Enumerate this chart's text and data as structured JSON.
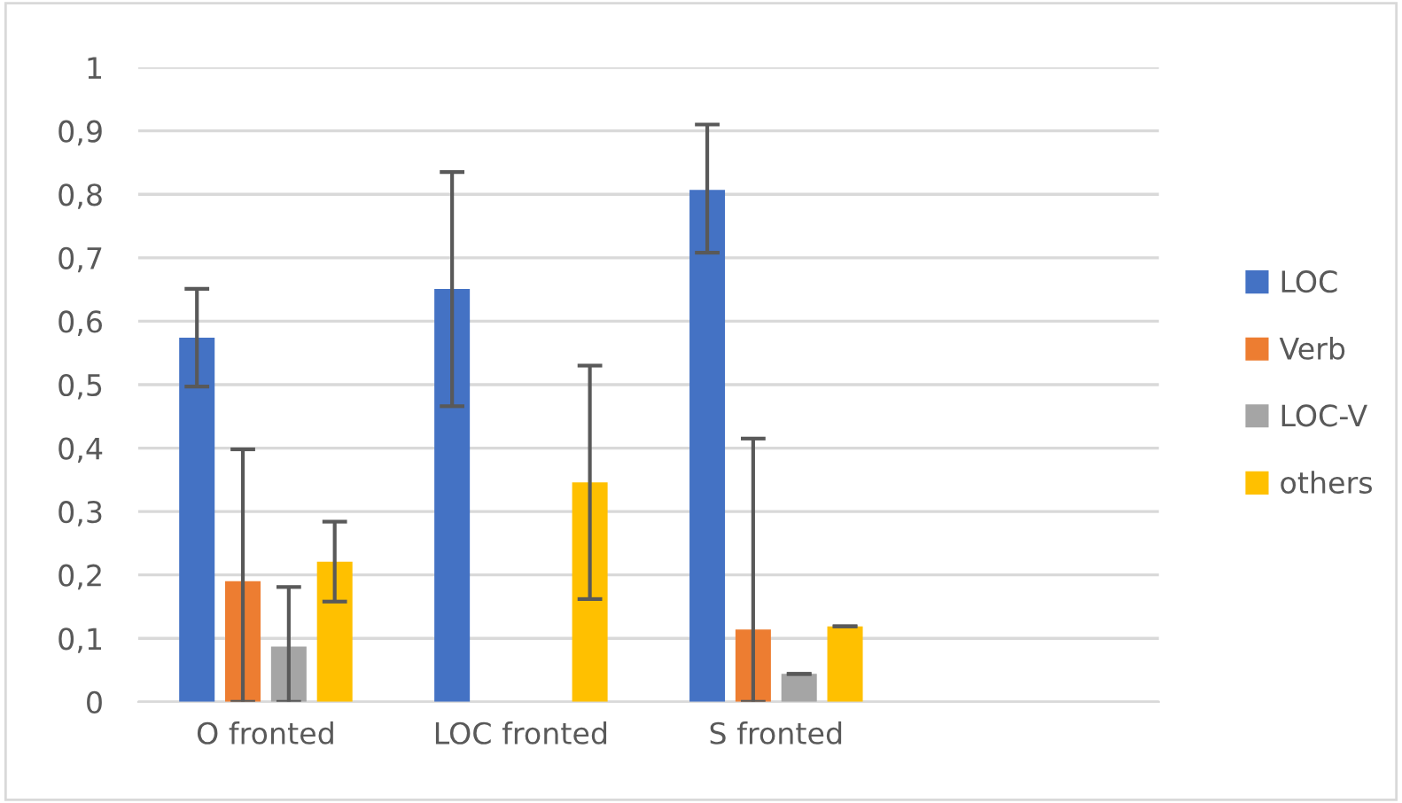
{
  "chart_data": {
    "type": "bar",
    "categories": [
      "O fronted",
      "LOC fronted",
      "S fronted",
      null
    ],
    "series": [
      {
        "name": "LOC",
        "color": "#4472c4",
        "values": [
          0.574,
          0.651,
          0.807,
          null
        ],
        "errors": [
          [
            0.497,
            0.651
          ],
          [
            0.466,
            0.835
          ],
          [
            0.708,
            0.91
          ],
          null
        ]
      },
      {
        "name": "Verb",
        "color": "#ed7d31",
        "values": [
          0.19,
          0,
          0.114,
          null
        ],
        "errors": [
          [
            0,
            0.398
          ],
          null,
          [
            0,
            0.415
          ],
          null
        ]
      },
      {
        "name": "LOC-V",
        "color": "#a5a5a5",
        "values": [
          0.087,
          0,
          0.044,
          null
        ],
        "errors": [
          [
            0,
            0.181
          ],
          null,
          0,
          null
        ]
      },
      {
        "name": "others",
        "color": "#ffc000",
        "values": [
          0.221,
          0.346,
          0.119,
          null
        ],
        "errors": [
          [
            0.158,
            0.284
          ],
          [
            0.162,
            0.53
          ],
          0,
          null
        ]
      }
    ],
    "ylim": [
      0,
      1
    ],
    "yticks": [
      0,
      {
        "value": 0.1,
        "label": "0,1"
      },
      {
        "value": 0.2,
        "label": "0,2"
      },
      {
        "value": 0.3,
        "label": "0,3"
      },
      {
        "value": 0.4,
        "label": "0,4"
      },
      {
        "value": 0.5,
        "label": "0,5"
      },
      {
        "value": 0.6,
        "label": "0,6"
      },
      {
        "value": 0.7,
        "label": "0,7"
      },
      {
        "value": 0.8,
        "label": "0,8"
      },
      {
        "value": 0.9,
        "label": "0,9"
      },
      1
    ],
    "grid": "y",
    "legend": "right"
  }
}
